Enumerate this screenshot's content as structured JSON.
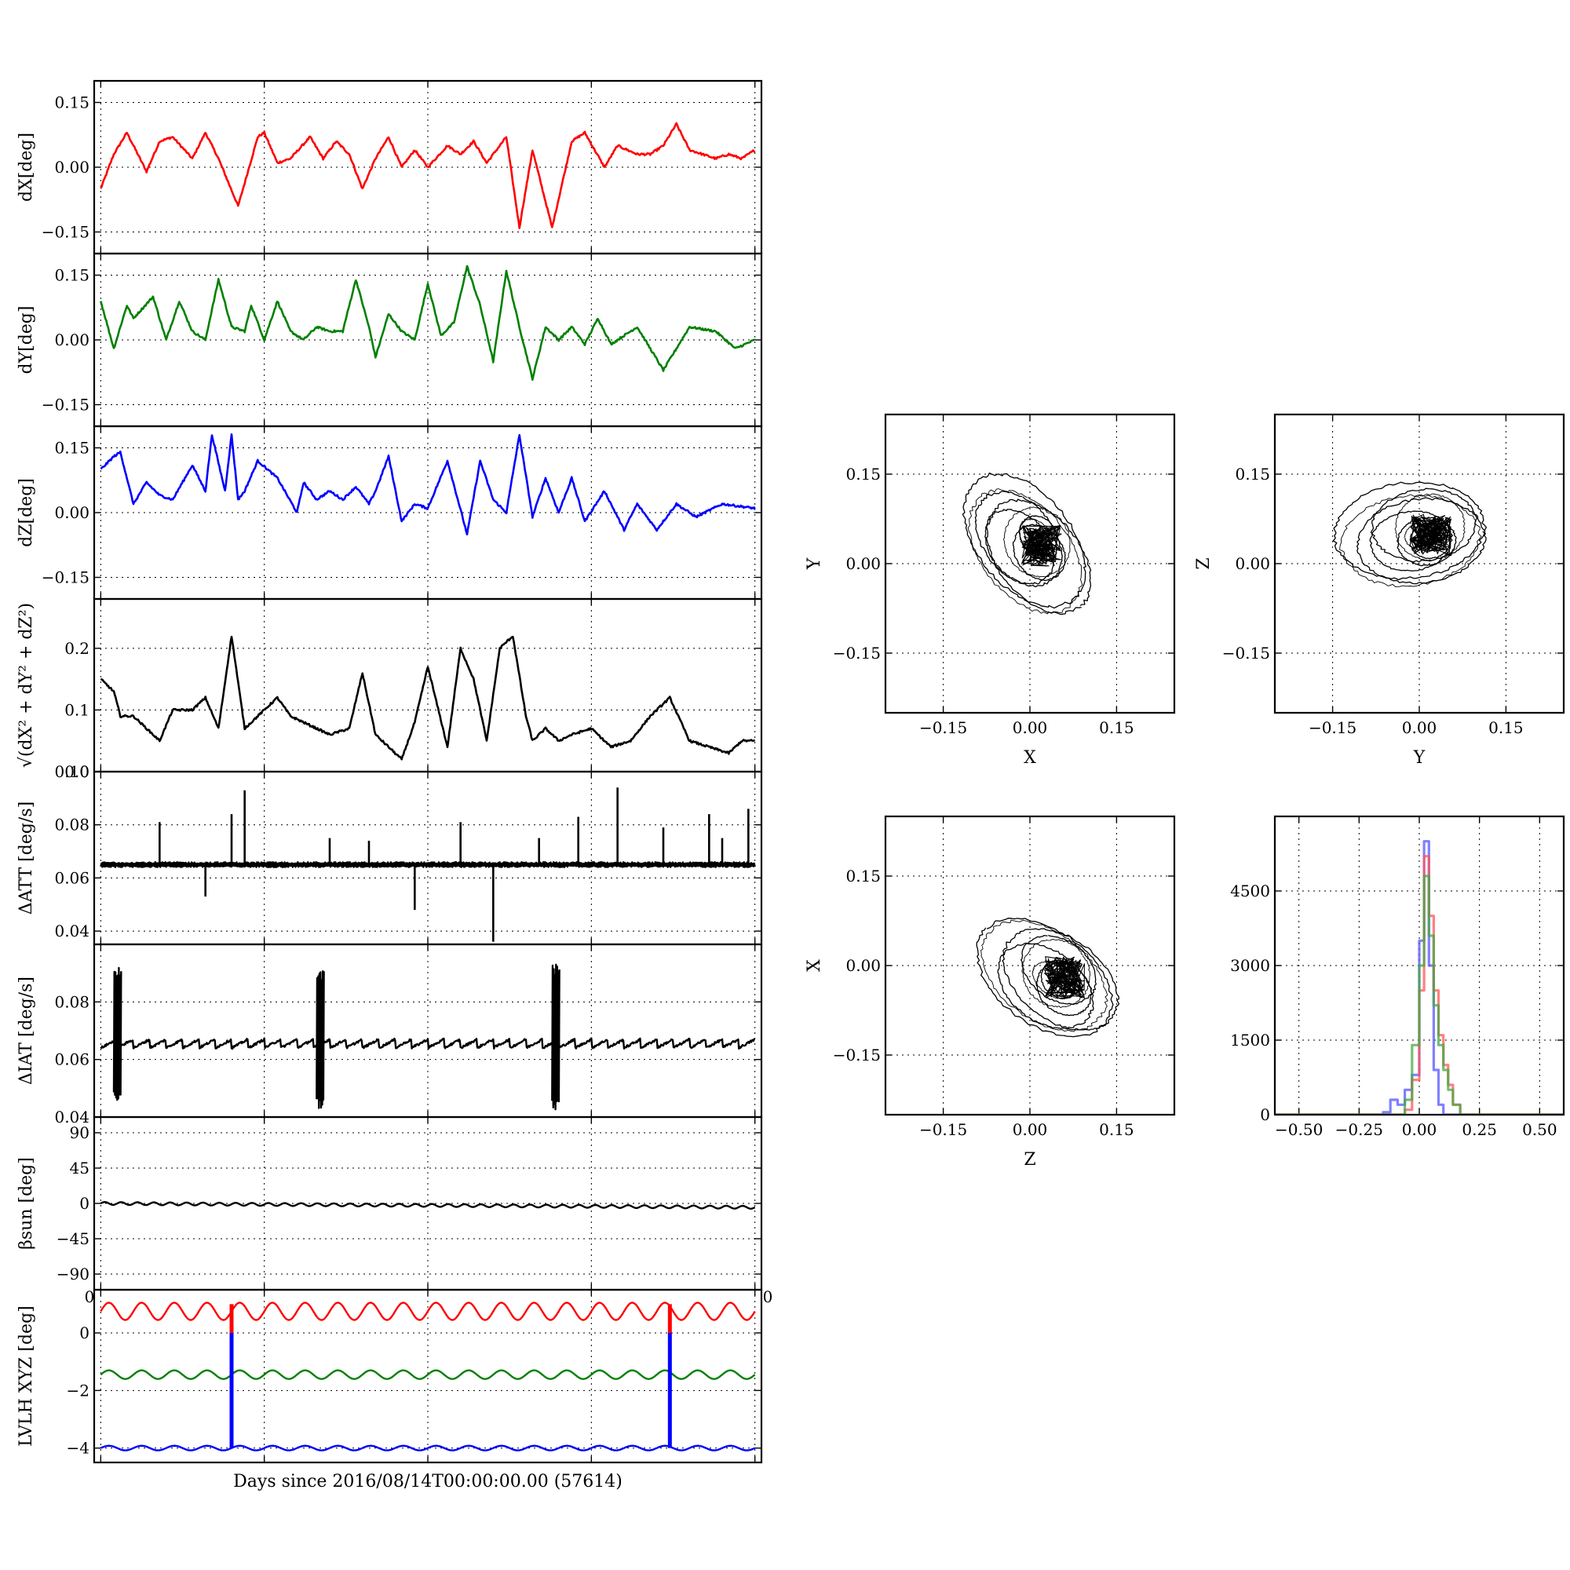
{
  "figure": {
    "time_xlabel": "Days since 2016/08/14T00:00:00.00 (57614)"
  },
  "chart_data": [
    {
      "id": "dX",
      "type": "line",
      "ylabel": "dX[deg]",
      "ylim": [
        -0.2,
        0.2
      ],
      "yticks": [
        0.15,
        0.0,
        -0.15
      ],
      "ytick_labels": [
        "0.15",
        "0.00",
        "−0.15"
      ],
      "grid": true,
      "series": [
        {
          "color": "#ff0000",
          "x": [
            0,
            0.02,
            0.04,
            0.05,
            0.07,
            0.09,
            0.11,
            0.14,
            0.16,
            0.18,
            0.21,
            0.24,
            0.25,
            0.27,
            0.29,
            0.32,
            0.34,
            0.36,
            0.38,
            0.4,
            0.42,
            0.44,
            0.46,
            0.48,
            0.5,
            0.53,
            0.55,
            0.57,
            0.59,
            0.62,
            0.64,
            0.66,
            0.69,
            0.72,
            0.74,
            0.77,
            0.79,
            0.82,
            0.84,
            0.86,
            0.88,
            0.9,
            0.92,
            0.94,
            0.96,
            0.98,
            1.0
          ],
          "y": [
            -0.05,
            0.03,
            0.08,
            0.05,
            -0.01,
            0.06,
            0.07,
            0.02,
            0.08,
            0.02,
            -0.09,
            0.07,
            0.08,
            0.01,
            0.02,
            0.07,
            0.02,
            0.06,
            0.03,
            -0.05,
            0.02,
            0.07,
            0.0,
            0.04,
            0.0,
            0.05,
            0.03,
            0.06,
            0.01,
            0.07,
            -0.14,
            0.04,
            -0.14,
            0.06,
            0.08,
            0.0,
            0.05,
            0.03,
            0.03,
            0.05,
            0.1,
            0.04,
            0.03,
            0.02,
            0.03,
            0.02,
            0.04
          ]
        }
      ]
    },
    {
      "id": "dY",
      "type": "line",
      "ylabel": "dY[deg]",
      "ylim": [
        -0.2,
        0.2
      ],
      "yticks": [
        0.15,
        0.0,
        -0.15
      ],
      "ytick_labels": [
        "0.15",
        "0.00",
        "−0.15"
      ],
      "grid": true,
      "series": [
        {
          "color": "#008000",
          "x": [
            0,
            0.02,
            0.04,
            0.05,
            0.08,
            0.1,
            0.12,
            0.14,
            0.16,
            0.18,
            0.2,
            0.22,
            0.23,
            0.25,
            0.27,
            0.29,
            0.31,
            0.33,
            0.35,
            0.37,
            0.39,
            0.41,
            0.42,
            0.44,
            0.46,
            0.48,
            0.5,
            0.52,
            0.54,
            0.56,
            0.58,
            0.6,
            0.62,
            0.64,
            0.66,
            0.68,
            0.7,
            0.72,
            0.74,
            0.76,
            0.78,
            0.82,
            0.86,
            0.9,
            0.94,
            0.97,
            1.0
          ],
          "y": [
            0.09,
            -0.02,
            0.08,
            0.05,
            0.1,
            0.0,
            0.09,
            0.02,
            0.0,
            0.14,
            0.03,
            0.02,
            0.08,
            0.0,
            0.09,
            0.02,
            0.0,
            0.03,
            0.02,
            0.02,
            0.14,
            0.03,
            -0.04,
            0.06,
            0.02,
            0.0,
            0.13,
            0.01,
            0.04,
            0.17,
            0.08,
            -0.05,
            0.16,
            0.03,
            -0.09,
            0.03,
            0.0,
            0.03,
            -0.01,
            0.05,
            -0.01,
            0.03,
            -0.07,
            0.03,
            0.02,
            -0.02,
            0.0
          ]
        }
      ]
    },
    {
      "id": "dZ",
      "type": "line",
      "ylabel": "dZ[deg]",
      "ylim": [
        -0.2,
        0.2
      ],
      "yticks": [
        0.15,
        0.0,
        -0.15
      ],
      "ytick_labels": [
        "0.15",
        "0.00",
        "−0.15"
      ],
      "grid": true,
      "series": [
        {
          "color": "#0000ff",
          "x": [
            0,
            0.02,
            0.03,
            0.05,
            0.07,
            0.09,
            0.11,
            0.14,
            0.16,
            0.17,
            0.19,
            0.2,
            0.21,
            0.22,
            0.24,
            0.27,
            0.3,
            0.31,
            0.33,
            0.35,
            0.37,
            0.39,
            0.41,
            0.42,
            0.44,
            0.46,
            0.48,
            0.5,
            0.53,
            0.56,
            0.58,
            0.6,
            0.62,
            0.64,
            0.66,
            0.68,
            0.7,
            0.72,
            0.74,
            0.77,
            0.8,
            0.82,
            0.85,
            0.88,
            0.91,
            0.95,
            1.0
          ],
          "y": [
            0.1,
            0.13,
            0.14,
            0.02,
            0.07,
            0.04,
            0.03,
            0.11,
            0.05,
            0.18,
            0.05,
            0.18,
            0.03,
            0.05,
            0.12,
            0.08,
            0.0,
            0.07,
            0.03,
            0.05,
            0.03,
            0.06,
            0.02,
            0.05,
            0.13,
            -0.02,
            0.02,
            0.01,
            0.12,
            -0.05,
            0.12,
            0.03,
            0.0,
            0.18,
            -0.01,
            0.08,
            0.0,
            0.08,
            -0.02,
            0.05,
            -0.04,
            0.02,
            -0.04,
            0.02,
            -0.01,
            0.02,
            0.01
          ]
        }
      ]
    },
    {
      "id": "mag",
      "type": "line",
      "ylabel": "√(dX² + dY² + dZ²)",
      "ylim": [
        0,
        0.28
      ],
      "yticks": [
        0.2,
        0.1,
        0.0
      ],
      "ytick_labels": [
        "0.2",
        "0.1",
        "0.0"
      ],
      "grid": true,
      "series": [
        {
          "color": "#000000",
          "x": [
            0,
            0.02,
            0.03,
            0.05,
            0.07,
            0.09,
            0.11,
            0.14,
            0.16,
            0.18,
            0.2,
            0.22,
            0.24,
            0.27,
            0.29,
            0.31,
            0.33,
            0.35,
            0.38,
            0.4,
            0.42,
            0.44,
            0.46,
            0.48,
            0.5,
            0.53,
            0.55,
            0.57,
            0.59,
            0.61,
            0.63,
            0.65,
            0.66,
            0.68,
            0.7,
            0.72,
            0.75,
            0.78,
            0.81,
            0.84,
            0.87,
            0.9,
            0.93,
            0.96,
            0.98,
            1.0
          ],
          "y": [
            0.15,
            0.13,
            0.09,
            0.09,
            0.07,
            0.05,
            0.1,
            0.1,
            0.12,
            0.07,
            0.22,
            0.07,
            0.09,
            0.12,
            0.09,
            0.08,
            0.07,
            0.06,
            0.07,
            0.16,
            0.06,
            0.04,
            0.02,
            0.08,
            0.17,
            0.04,
            0.2,
            0.15,
            0.05,
            0.2,
            0.22,
            0.09,
            0.05,
            0.07,
            0.05,
            0.06,
            0.07,
            0.04,
            0.05,
            0.09,
            0.12,
            0.05,
            0.04,
            0.03,
            0.05,
            0.05
          ]
        }
      ]
    },
    {
      "id": "datt",
      "type": "line",
      "ylabel": "ΔATT [deg/s]",
      "ylim": [
        0.035,
        0.1
      ],
      "yticks": [
        0.1,
        0.08,
        0.06,
        0.04
      ],
      "ytick_labels": [
        "0.10",
        "0.08",
        "0.06",
        "0.04"
      ],
      "grid": true,
      "baseline": 0.065,
      "spikes": [
        [
          0.09,
          0.081
        ],
        [
          0.16,
          0.053
        ],
        [
          0.2,
          0.084
        ],
        [
          0.22,
          0.093
        ],
        [
          0.35,
          0.075
        ],
        [
          0.41,
          0.074
        ],
        [
          0.48,
          0.048
        ],
        [
          0.55,
          0.081
        ],
        [
          0.6,
          0.036
        ],
        [
          0.67,
          0.075
        ],
        [
          0.73,
          0.083
        ],
        [
          0.79,
          0.094
        ],
        [
          0.86,
          0.079
        ],
        [
          0.93,
          0.084
        ],
        [
          0.95,
          0.075
        ],
        [
          0.99,
          0.086
        ]
      ],
      "series": [
        {
          "color": "#000000"
        }
      ]
    },
    {
      "id": "diat",
      "type": "line",
      "ylabel": "ΔIAT [deg/s]",
      "ylim": [
        0.04,
        0.1
      ],
      "yticks": [
        0.08,
        0.06,
        0.04
      ],
      "ytick_labels": [
        "0.08",
        "0.06",
        "0.04"
      ],
      "grid": true,
      "baseline": 0.064,
      "sawtooth_amplitude": 0.003,
      "bursts": [
        [
          0.02,
          0.045,
          0.092
        ],
        [
          0.33,
          0.043,
          0.091
        ],
        [
          0.69,
          0.042,
          0.093
        ]
      ],
      "series": [
        {
          "color": "#000000"
        }
      ]
    },
    {
      "id": "beta",
      "type": "line",
      "ylabel": "βsun [deg]",
      "ylim": [
        -110,
        110
      ],
      "yticks": [
        90,
        45,
        0,
        -45,
        -90
      ],
      "ytick_labels": [
        "90",
        "45",
        "0",
        "−45",
        "−90"
      ],
      "grid": true,
      "x_edge_labels": [
        "0",
        "0"
      ],
      "series": [
        {
          "color": "#000000",
          "x": [
            0,
            1
          ],
          "y": [
            0,
            -5
          ]
        }
      ]
    },
    {
      "id": "lvlh",
      "type": "line",
      "ylabel": "LVLH XYZ [deg]",
      "ylim": [
        -4.5,
        1.5
      ],
      "yticks": [
        0,
        -2,
        -4
      ],
      "ytick_labels": [
        "0",
        "−2",
        "−4"
      ],
      "grid": true,
      "jumps": [
        0.2,
        0.87
      ],
      "series": [
        {
          "color": "#ff0000",
          "mean": 0.75,
          "amplitude": 0.3
        },
        {
          "color": "#008000",
          "mean": -1.45,
          "amplitude": 0.15
        },
        {
          "color": "#0000ff",
          "mean": -4.0,
          "amplitude": 0.08
        }
      ]
    },
    {
      "id": "xy",
      "type": "scatter",
      "xlabel": "X",
      "ylabel": "Y",
      "xlim": [
        -0.25,
        0.25
      ],
      "ylim": [
        -0.25,
        0.25
      ],
      "xticks": [
        -0.15,
        0.0,
        0.15
      ],
      "xtick_labels": [
        "−0.15",
        "0.00",
        "0.15"
      ],
      "yticks": [
        0.15,
        0.0,
        -0.15
      ],
      "ytick_labels": [
        "0.15",
        "0.00",
        "−0.15"
      ],
      "grid": true,
      "series": [
        {
          "color": "#000000"
        }
      ]
    },
    {
      "id": "zy",
      "type": "scatter",
      "xlabel": "Y",
      "ylabel": "Z",
      "xlim": [
        -0.25,
        0.25
      ],
      "ylim": [
        -0.25,
        0.25
      ],
      "xticks": [
        -0.15,
        0.0,
        0.15
      ],
      "xtick_labels": [
        "−0.15",
        "0.00",
        "0.15"
      ],
      "yticks": [
        0.15,
        0.0,
        -0.15
      ],
      "ytick_labels": [
        "0.15",
        "0.00",
        "−0.15"
      ],
      "grid": true,
      "series": [
        {
          "color": "#000000"
        }
      ]
    },
    {
      "id": "zx",
      "type": "scatter",
      "xlabel": "Z",
      "ylabel": "X",
      "xlim": [
        -0.25,
        0.25
      ],
      "ylim": [
        -0.25,
        0.25
      ],
      "xticks": [
        -0.15,
        0.0,
        0.15
      ],
      "xtick_labels": [
        "−0.15",
        "0.00",
        "0.15"
      ],
      "yticks": [
        0.15,
        0.0,
        -0.15
      ],
      "ytick_labels": [
        "0.15",
        "0.00",
        "−0.15"
      ],
      "grid": true,
      "series": [
        {
          "color": "#000000"
        }
      ]
    },
    {
      "id": "hist",
      "type": "bar",
      "xlim": [
        -0.6,
        0.6
      ],
      "ylim": [
        0,
        6000
      ],
      "xticks": [
        -0.5,
        -0.25,
        0.0,
        0.25,
        0.5
      ],
      "xtick_labels": [
        "−0.50",
        "−0.25",
        "0.00",
        "0.25",
        "0.50"
      ],
      "yticks": [
        4500,
        3000,
        1500,
        0
      ],
      "ytick_labels": [
        "4500",
        "3000",
        "1500",
        "0"
      ],
      "grid": true,
      "series": [
        {
          "color": "#5555ff",
          "bins": [
            -0.15,
            -0.12,
            -0.09,
            -0.06,
            -0.03,
            0.0,
            0.02,
            0.04,
            0.06,
            0.08,
            0.1
          ],
          "counts": [
            50,
            300,
            200,
            500,
            800,
            3500,
            5500,
            3000,
            900,
            200,
            0
          ]
        },
        {
          "color": "#ff5555",
          "bins": [
            -0.06,
            -0.03,
            0.0,
            0.02,
            0.04,
            0.06,
            0.08,
            0.1,
            0.12,
            0.14,
            0.17
          ],
          "counts": [
            100,
            700,
            2500,
            5200,
            4000,
            2500,
            1600,
            1000,
            600,
            200,
            0
          ]
        },
        {
          "color": "#44aa44",
          "bins": [
            -0.06,
            -0.03,
            0.0,
            0.02,
            0.04,
            0.06,
            0.08,
            0.1,
            0.12,
            0.14,
            0.17
          ],
          "counts": [
            300,
            1400,
            3000,
            4800,
            3600,
            2200,
            1400,
            900,
            500,
            200,
            0
          ]
        }
      ]
    }
  ]
}
